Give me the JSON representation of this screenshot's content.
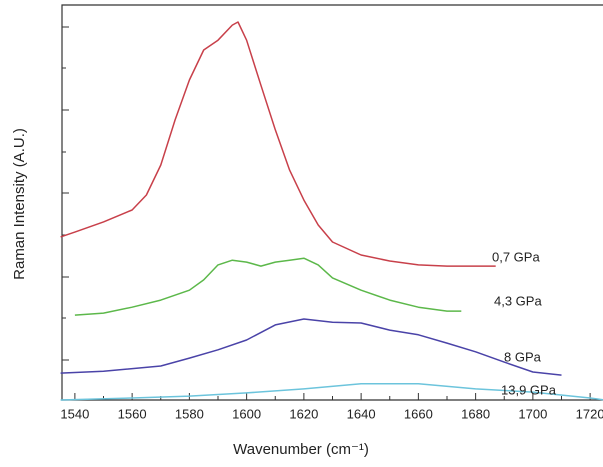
{
  "chart_data": {
    "type": "line",
    "xlabel": "Wavenumber (cm⁻¹)",
    "ylabel": "Raman Intensity (A.U.)",
    "xlim": [
      1535.5,
      1724.5
    ],
    "xticks": [
      1540,
      1560,
      1580,
      1600,
      1620,
      1640,
      1660,
      1680,
      1700,
      1720
    ],
    "ylim": [
      0,
      100
    ],
    "series": [
      {
        "name": "0,7 GPa",
        "color": "#c8404a",
        "x": [
          1535,
          1540,
          1550,
          1560,
          1565,
          1570,
          1575,
          1580,
          1585,
          1590,
          1595,
          1597,
          1600,
          1605,
          1610,
          1615,
          1620,
          1625,
          1630,
          1640,
          1650,
          1660,
          1670,
          1687
        ],
        "values": [
          41.3,
          42.5,
          45.1,
          48.1,
          51.9,
          59.5,
          70.9,
          81,
          88.6,
          91.1,
          94.9,
          95.7,
          91.1,
          79.7,
          68.4,
          58.2,
          50.6,
          44.3,
          40,
          36.7,
          35.2,
          34.2,
          33.9,
          33.9
        ]
      },
      {
        "name": "4,3 GPa",
        "color": "#5cb84a",
        "x": [
          1540,
          1550,
          1560,
          1570,
          1580,
          1585,
          1590,
          1595,
          1600,
          1605,
          1610,
          1615,
          1620,
          1625,
          1630,
          1640,
          1650,
          1660,
          1670,
          1675
        ],
        "values": [
          21.5,
          22.0,
          23.5,
          25.3,
          27.8,
          30.4,
          34.2,
          35.4,
          34.9,
          33.9,
          34.9,
          35.4,
          35.9,
          34.2,
          30.9,
          27.8,
          25.3,
          23.5,
          22.5,
          22.5
        ]
      },
      {
        "name": "8 GPa",
        "color": "#4a43a8",
        "x": [
          1535,
          1550,
          1570,
          1580,
          1590,
          1600,
          1610,
          1620,
          1630,
          1640,
          1650,
          1660,
          1670,
          1680,
          1690,
          1700,
          1710
        ],
        "values": [
          6.8,
          7.3,
          8.6,
          10.6,
          12.7,
          15.2,
          19,
          20.5,
          19.7,
          19.5,
          17.7,
          16.5,
          14.4,
          12.2,
          9.6,
          7.1,
          6.3
        ]
      },
      {
        "name": "13,9 GPa",
        "color": "#6cc4dc",
        "x": [
          1535,
          1560,
          1580,
          1600,
          1620,
          1640,
          1660,
          1680,
          1700,
          1720,
          1725
        ],
        "values": [
          0,
          0.5,
          1,
          1.8,
          2.8,
          4.1,
          4.1,
          2.8,
          2.0,
          0.5,
          0
        ]
      }
    ]
  }
}
